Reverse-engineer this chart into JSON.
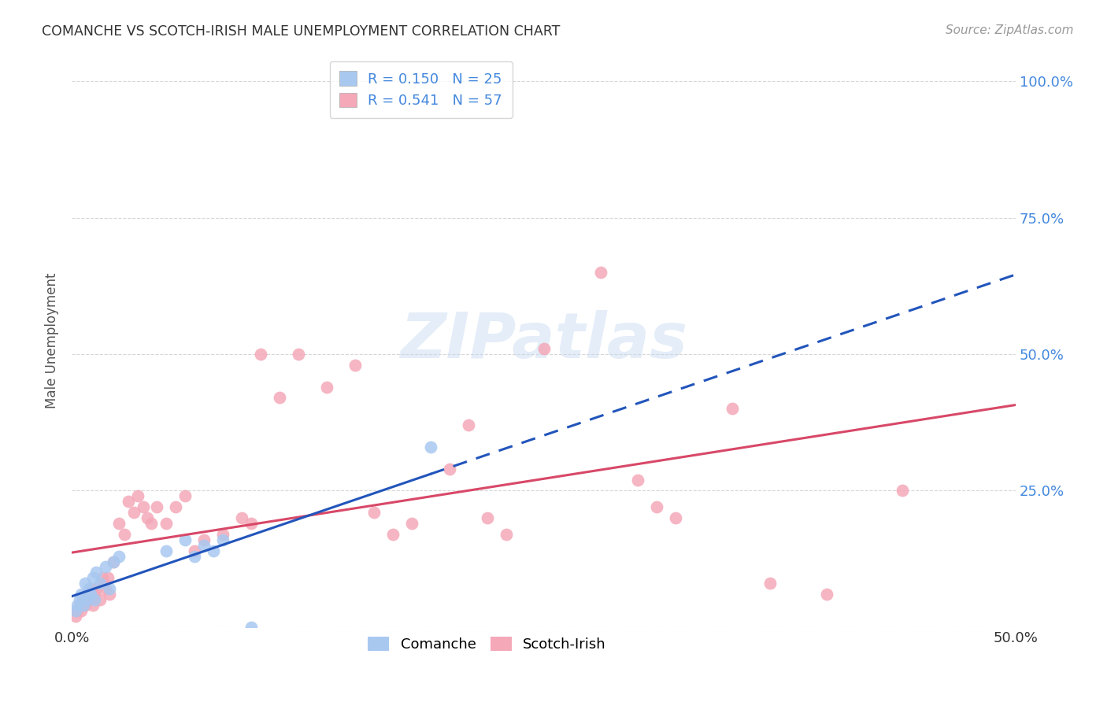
{
  "title": "COMANCHE VS SCOTCH-IRISH MALE UNEMPLOYMENT CORRELATION CHART",
  "source": "Source: ZipAtlas.com",
  "ylabel": "Male Unemployment",
  "watermark": "ZIPatlas",
  "xlim": [
    0.0,
    0.5
  ],
  "ylim": [
    0.0,
    1.05
  ],
  "comanche_R": 0.15,
  "comanche_N": 25,
  "scotch_irish_R": 0.541,
  "scotch_irish_N": 57,
  "comanche_color": "#a8c8f0",
  "scotch_irish_color": "#f4a8b8",
  "comanche_line_color": "#2255bb",
  "scotch_irish_line_color": "#d84868",
  "background_color": "#ffffff",
  "grid_color": "#cccccc",
  "title_color": "#333333",
  "right_axis_color": "#4488dd",
  "comanche_x": [
    0.002,
    0.003,
    0.004,
    0.005,
    0.006,
    0.007,
    0.008,
    0.009,
    0.01,
    0.011,
    0.012,
    0.013,
    0.015,
    0.018,
    0.02,
    0.022,
    0.025,
    0.05,
    0.06,
    0.065,
    0.07,
    0.075,
    0.08,
    0.095,
    0.19
  ],
  "comanche_y": [
    0.03,
    0.04,
    0.05,
    0.06,
    0.04,
    0.08,
    0.05,
    0.07,
    0.06,
    0.09,
    0.05,
    0.1,
    0.08,
    0.11,
    0.07,
    0.12,
    0.13,
    0.14,
    0.16,
    0.13,
    0.15,
    0.14,
    0.16,
    0.0,
    0.33
  ],
  "scotch_irish_x": [
    0.002,
    0.003,
    0.004,
    0.005,
    0.006,
    0.007,
    0.008,
    0.009,
    0.01,
    0.011,
    0.012,
    0.013,
    0.015,
    0.016,
    0.017,
    0.018,
    0.019,
    0.02,
    0.022,
    0.025,
    0.028,
    0.03,
    0.033,
    0.035,
    0.038,
    0.04,
    0.042,
    0.045,
    0.05,
    0.055,
    0.06,
    0.065,
    0.07,
    0.08,
    0.09,
    0.095,
    0.1,
    0.11,
    0.12,
    0.135,
    0.15,
    0.16,
    0.17,
    0.18,
    0.2,
    0.21,
    0.22,
    0.23,
    0.25,
    0.28,
    0.3,
    0.31,
    0.32,
    0.35,
    0.37,
    0.4,
    0.44
  ],
  "scotch_irish_y": [
    0.02,
    0.03,
    0.04,
    0.03,
    0.05,
    0.04,
    0.06,
    0.05,
    0.07,
    0.04,
    0.06,
    0.07,
    0.05,
    0.09,
    0.08,
    0.07,
    0.09,
    0.06,
    0.12,
    0.19,
    0.17,
    0.23,
    0.21,
    0.24,
    0.22,
    0.2,
    0.19,
    0.22,
    0.19,
    0.22,
    0.24,
    0.14,
    0.16,
    0.17,
    0.2,
    0.19,
    0.5,
    0.42,
    0.5,
    0.44,
    0.48,
    0.21,
    0.17,
    0.19,
    0.29,
    0.37,
    0.2,
    0.17,
    0.51,
    0.65,
    0.27,
    0.22,
    0.2,
    0.4,
    0.08,
    0.06,
    0.25
  ],
  "ytick_vals": [
    0.0,
    0.25,
    0.5,
    0.75,
    1.0
  ],
  "right_ytick_labels": [
    "100.0%",
    "75.0%",
    "50.0%",
    "25.0%",
    ""
  ],
  "xtick_positions": [
    0.0,
    0.1,
    0.2,
    0.3,
    0.4,
    0.5
  ],
  "xtick_labels": [
    "0.0%",
    "",
    "",
    "",
    "",
    "50.0%"
  ]
}
